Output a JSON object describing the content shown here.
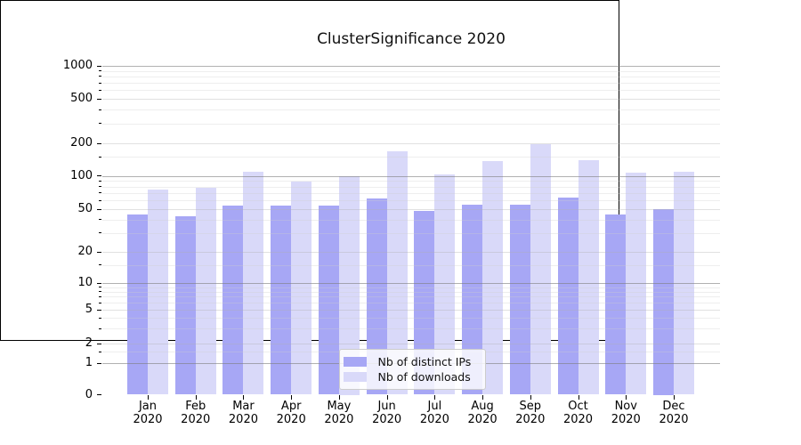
{
  "figure": {
    "background": "#ffffff",
    "plot_background": "#ffffff"
  },
  "chart_data": {
    "type": "bar",
    "title": "ClusterSignificance 2020",
    "xlabel": "",
    "ylabel": "",
    "categories": [
      "Jan 2020",
      "Feb 2020",
      "Mar 2020",
      "Apr 2020",
      "May 2020",
      "Jun 2020",
      "Jul 2020",
      "Aug 2020",
      "Sep 2020",
      "Oct 2020",
      "Nov 2020",
      "Dec 2020"
    ],
    "x_tick_months": [
      "Jan",
      "Feb",
      "Mar",
      "Apr",
      "May",
      "Jun",
      "Jul",
      "Aug",
      "Sep",
      "Oct",
      "Nov",
      "Dec"
    ],
    "x_tick_year": "2020",
    "series": [
      {
        "name": "Nb of distinct IPs",
        "color": "#a7a7f5",
        "values": [
          45,
          43,
          54,
          54,
          54,
          62,
          48,
          55,
          55,
          64,
          45,
          50
        ]
      },
      {
        "name": "Nb of downloads",
        "color": "#d9d9f9",
        "values": [
          75,
          78,
          108,
          89,
          100,
          170,
          102,
          138,
          195,
          140,
          106,
          108
        ]
      }
    ],
    "y_axis": {
      "scale": "log-like (0,1 then logarithmic 1-2-5 steps)",
      "ticks": [
        0,
        1,
        2,
        5,
        10,
        20,
        50,
        100,
        200,
        500,
        1000
      ],
      "range_top": 1000
    },
    "legend": {
      "position": "lower center",
      "entries": [
        "Nb of distinct IPs",
        "Nb of downloads"
      ]
    },
    "grid": "horizontal, major decades darker + faint minors"
  }
}
